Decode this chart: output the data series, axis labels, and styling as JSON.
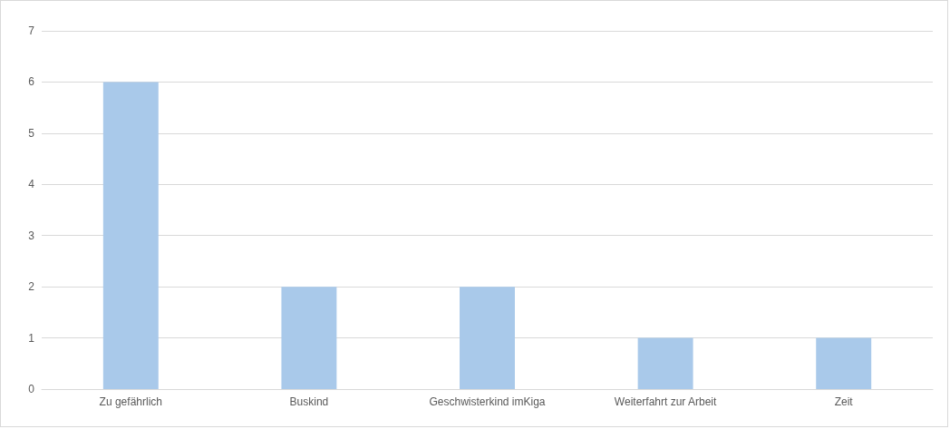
{
  "chart_data": {
    "type": "bar",
    "categories": [
      "Zu gefährlich",
      "Buskind",
      "Geschwisterkind imKiga",
      "Weiterfahrt zur Arbeit",
      "Zeit"
    ],
    "values": [
      6,
      2,
      2,
      1,
      1
    ],
    "color": "#a9c9ea",
    "ylim": [
      0,
      7
    ],
    "yticks": [
      0,
      1,
      2,
      3,
      4,
      5,
      6,
      7
    ],
    "grid": "y"
  }
}
